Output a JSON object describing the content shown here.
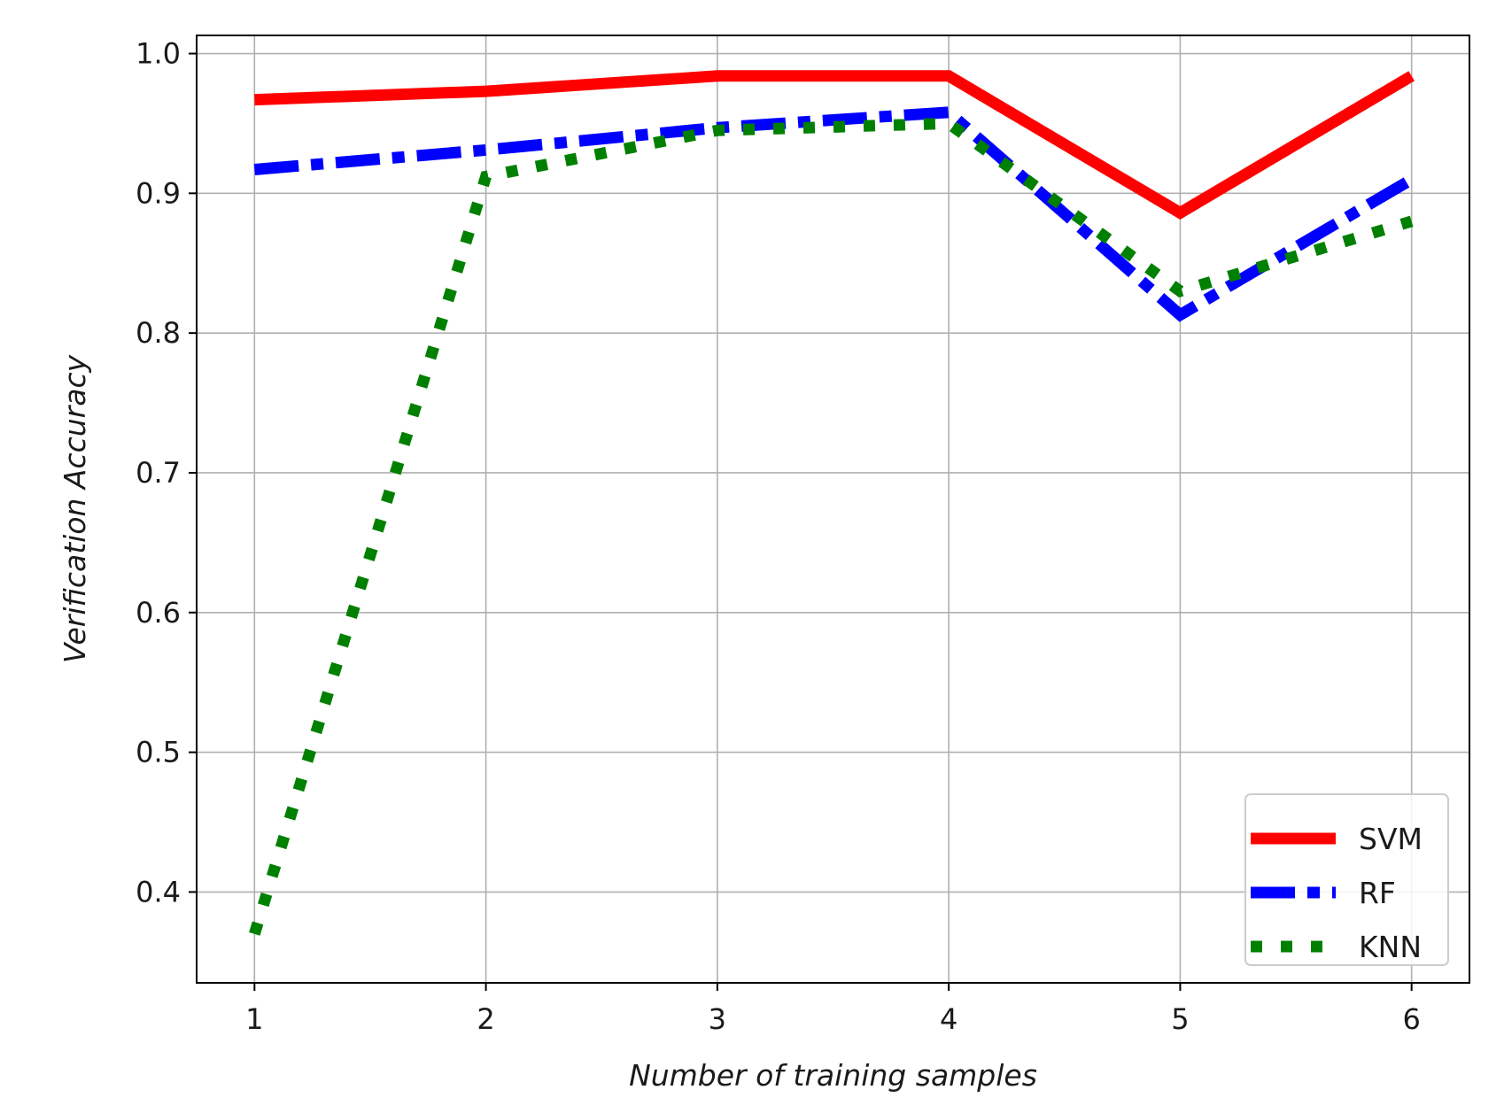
{
  "chart_data": {
    "type": "line",
    "xlabel": "Number of training samples",
    "ylabel": "Verification Accuracy",
    "x": [
      1,
      2,
      3,
      4,
      5,
      6
    ],
    "xlim": [
      0.75,
      6.25
    ],
    "ylim": [
      0.335,
      1.013
    ],
    "xticks": [
      1,
      2,
      3,
      4,
      5,
      6
    ],
    "yticks": [
      "0.4",
      "0.5",
      "0.6",
      "0.7",
      "0.8",
      "0.9",
      "1.0"
    ],
    "grid": true,
    "legend_position": "bottom-right",
    "series": [
      {
        "name": "SVM",
        "values": [
          0.967,
          0.973,
          0.984,
          0.984,
          0.886,
          0.984
        ],
        "color": "#ff0000",
        "style": "solid"
      },
      {
        "name": "RF",
        "values": [
          0.917,
          0.931,
          0.947,
          0.958,
          0.813,
          0.91
        ],
        "color": "#0000ff",
        "style": "dashdot"
      },
      {
        "name": "KNN",
        "values": [
          0.37,
          0.912,
          0.945,
          0.95,
          0.83,
          0.88
        ],
        "color": "#008000",
        "style": "dotted"
      }
    ]
  }
}
